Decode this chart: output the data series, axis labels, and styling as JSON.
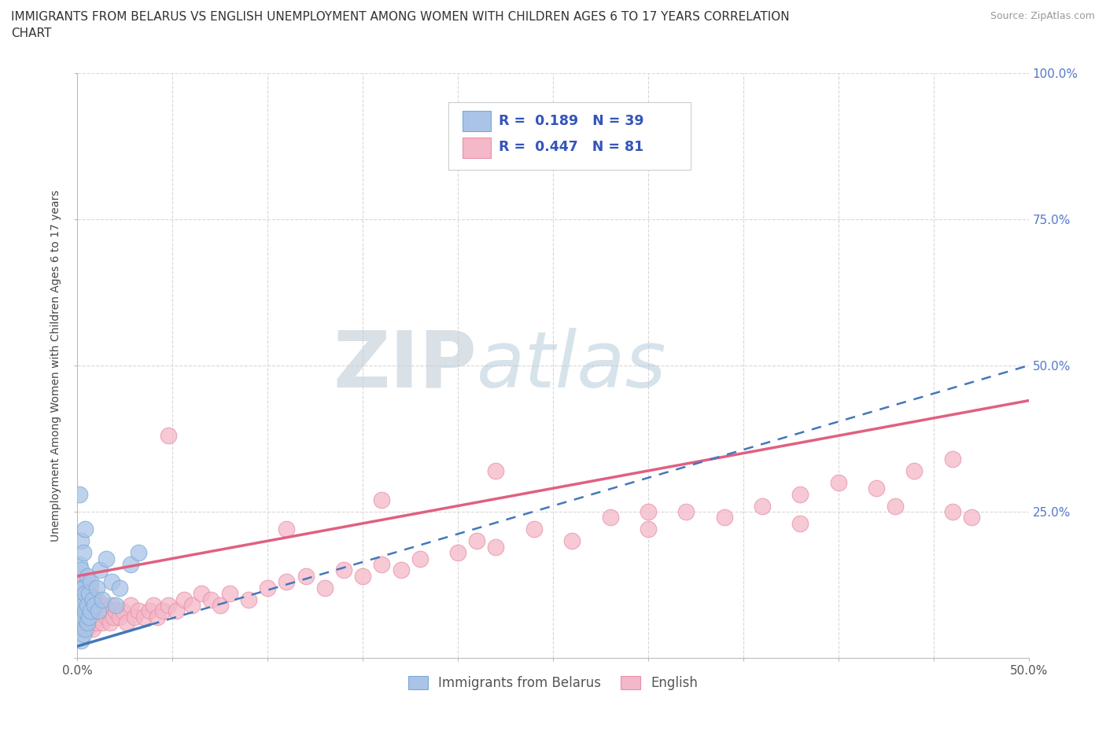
{
  "title_line1": "IMMIGRANTS FROM BELARUS VS ENGLISH UNEMPLOYMENT AMONG WOMEN WITH CHILDREN AGES 6 TO 17 YEARS CORRELATION",
  "title_line2": "CHART",
  "source": "Source: ZipAtlas.com",
  "ylabel": "Unemployment Among Women with Children Ages 6 to 17 years",
  "xlim": [
    0,
    0.5
  ],
  "ylim": [
    0,
    1.0
  ],
  "blue_R": 0.189,
  "blue_N": 39,
  "pink_R": 0.447,
  "pink_N": 81,
  "blue_color": "#aac4e8",
  "blue_edge_color": "#7aaad4",
  "blue_line_color": "#4477bb",
  "pink_color": "#f4b8c8",
  "pink_edge_color": "#e890a8",
  "pink_line_color": "#e06080",
  "watermark_zip_color": "#c0ced8",
  "watermark_atlas_color": "#b0c8d8",
  "grid_color": "#d8d8d8",
  "background_color": "#ffffff",
  "legend_value_color": "#3355bb",
  "right_tick_color": "#5577cc",
  "blue_scatter_x": [
    0.001,
    0.001,
    0.001,
    0.001,
    0.002,
    0.002,
    0.002,
    0.002,
    0.002,
    0.002,
    0.003,
    0.003,
    0.003,
    0.003,
    0.003,
    0.004,
    0.004,
    0.004,
    0.004,
    0.005,
    0.005,
    0.005,
    0.006,
    0.006,
    0.007,
    0.007,
    0.008,
    0.009,
    0.01,
    0.011,
    0.012,
    0.013,
    0.015,
    0.018,
    0.02,
    0.022,
    0.028,
    0.032,
    0.001
  ],
  "blue_scatter_y": [
    0.05,
    0.08,
    0.1,
    0.16,
    0.03,
    0.06,
    0.08,
    0.12,
    0.15,
    0.2,
    0.04,
    0.07,
    0.09,
    0.12,
    0.18,
    0.05,
    0.08,
    0.11,
    0.22,
    0.06,
    0.09,
    0.14,
    0.07,
    0.11,
    0.08,
    0.13,
    0.1,
    0.09,
    0.12,
    0.08,
    0.15,
    0.1,
    0.17,
    0.13,
    0.09,
    0.12,
    0.16,
    0.18,
    0.28
  ],
  "pink_scatter_x": [
    0.001,
    0.002,
    0.002,
    0.003,
    0.003,
    0.004,
    0.004,
    0.005,
    0.005,
    0.006,
    0.006,
    0.007,
    0.007,
    0.008,
    0.008,
    0.009,
    0.01,
    0.01,
    0.011,
    0.012,
    0.013,
    0.014,
    0.015,
    0.016,
    0.017,
    0.018,
    0.019,
    0.02,
    0.022,
    0.024,
    0.026,
    0.028,
    0.03,
    0.032,
    0.035,
    0.038,
    0.04,
    0.042,
    0.045,
    0.048,
    0.052,
    0.056,
    0.06,
    0.065,
    0.07,
    0.075,
    0.08,
    0.09,
    0.1,
    0.11,
    0.12,
    0.13,
    0.14,
    0.15,
    0.16,
    0.17,
    0.18,
    0.2,
    0.21,
    0.22,
    0.24,
    0.26,
    0.28,
    0.3,
    0.32,
    0.34,
    0.36,
    0.38,
    0.4,
    0.42,
    0.44,
    0.46,
    0.048,
    0.11,
    0.16,
    0.22,
    0.3,
    0.38,
    0.43,
    0.46,
    0.47
  ],
  "pink_scatter_y": [
    0.08,
    0.05,
    0.12,
    0.06,
    0.1,
    0.07,
    0.13,
    0.05,
    0.09,
    0.06,
    0.11,
    0.07,
    0.12,
    0.05,
    0.08,
    0.09,
    0.06,
    0.1,
    0.07,
    0.08,
    0.06,
    0.09,
    0.07,
    0.08,
    0.06,
    0.09,
    0.07,
    0.08,
    0.07,
    0.08,
    0.06,
    0.09,
    0.07,
    0.08,
    0.07,
    0.08,
    0.09,
    0.07,
    0.08,
    0.09,
    0.08,
    0.1,
    0.09,
    0.11,
    0.1,
    0.09,
    0.11,
    0.1,
    0.12,
    0.13,
    0.14,
    0.12,
    0.15,
    0.14,
    0.16,
    0.15,
    0.17,
    0.18,
    0.2,
    0.19,
    0.22,
    0.2,
    0.24,
    0.22,
    0.25,
    0.24,
    0.26,
    0.28,
    0.3,
    0.29,
    0.32,
    0.34,
    0.38,
    0.22,
    0.27,
    0.32,
    0.25,
    0.23,
    0.26,
    0.25,
    0.24
  ],
  "series_blue_label": "Immigrants from Belarus",
  "series_pink_label": "English",
  "blue_line_start_x": 0.0,
  "blue_line_start_y": 0.02,
  "blue_line_end_x": 0.5,
  "blue_line_end_y": 0.5,
  "pink_line_start_x": 0.0,
  "pink_line_start_y": 0.14,
  "pink_line_end_x": 0.5,
  "pink_line_end_y": 0.44
}
